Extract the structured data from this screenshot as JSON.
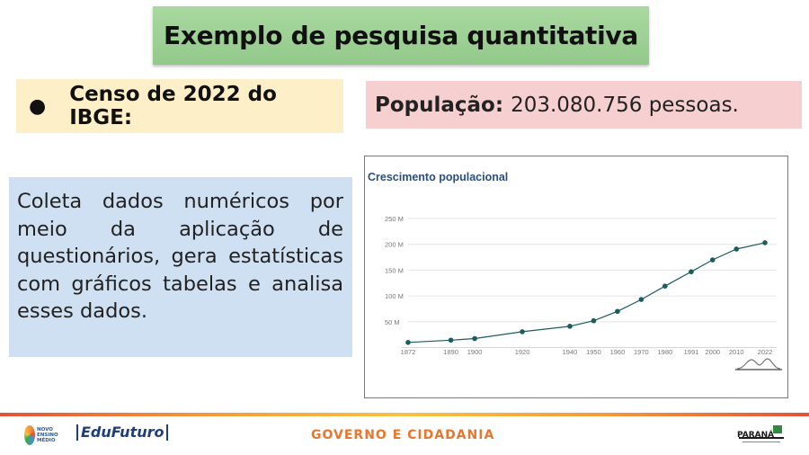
{
  "title": "Exemplo de pesquisa quantitativa",
  "censo": {
    "bullet": "●",
    "text": "Censo de 2022 do IBGE:"
  },
  "populacao": {
    "label": "População:",
    "value": "203.080.756 pessoas."
  },
  "coleta_text": "Coleta dados numéricos por meio da aplicação de questionários, gera estatísticas com gráficos tabelas e analisa esses dados.",
  "footer": {
    "center": "GOVERNO E CIDADANIA",
    "logo_novo_ensino": "NOVO ENSINO MÉDIO",
    "logo_edufuturo": "EduFuturo",
    "logo_parana": "PARANÁ"
  },
  "chart_data": {
    "type": "line",
    "title": "Crescimento populacional",
    "title_color": "#2b4f7c",
    "line_color": "#1d5c5e",
    "grid": true,
    "y_unit": "M",
    "yticks": [
      "50 M",
      "100 M",
      "150 M",
      "200 M",
      "250 M"
    ],
    "ytick_values": [
      50,
      100,
      150,
      200,
      250
    ],
    "ylim": [
      0,
      250
    ],
    "x_labels": [
      "1872",
      "1890",
      "1900",
      "1920",
      "1940",
      "1950",
      "1960",
      "1970",
      "1980",
      "1991",
      "2000",
      "2010",
      "2022"
    ],
    "x": [
      1872,
      1890,
      1900,
      1920,
      1940,
      1950,
      1960,
      1970,
      1980,
      1991,
      2000,
      2010,
      2022
    ],
    "values": [
      9.9,
      14.3,
      17.4,
      30.6,
      41.2,
      51.9,
      70.1,
      93.1,
      119.0,
      146.8,
      169.8,
      190.8,
      203.1
    ]
  }
}
